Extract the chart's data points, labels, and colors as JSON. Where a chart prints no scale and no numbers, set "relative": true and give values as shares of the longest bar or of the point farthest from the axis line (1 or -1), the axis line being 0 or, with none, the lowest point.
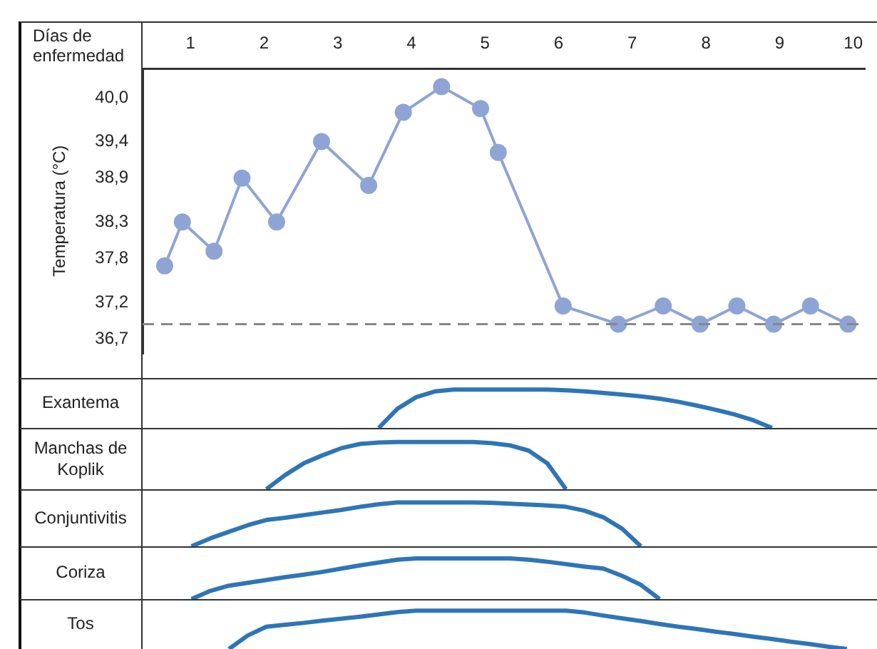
{
  "chart_data": [
    {
      "type": "line",
      "xlabel": "Días de enfermedad",
      "ylabel": "Temperatura (°C)",
      "marker": "circle",
      "x": [
        0.65,
        0.89,
        1.32,
        1.7,
        2.17,
        2.78,
        3.42,
        3.89,
        4.41,
        4.94,
        5.18,
        6.06,
        6.81,
        7.42,
        7.92,
        8.42,
        8.92,
        9.42,
        9.93
      ],
      "series": [
        {
          "color": "#8ea4d4",
          "values": [
            37.7,
            38.3,
            37.9,
            38.9,
            38.3,
            39.4,
            38.8,
            39.8,
            40.15,
            39.85,
            39.25,
            37.15,
            36.9,
            37.15,
            36.9,
            37.15,
            36.9,
            37.15,
            36.9
          ]
        }
      ],
      "xlim": [
        0.35,
        10.16
      ],
      "xticks": [
        1,
        2,
        3,
        4,
        5,
        6,
        7,
        8,
        9,
        10
      ],
      "ylim": [
        36.5,
        40.4
      ],
      "yticks": [
        {
          "value": 36.7,
          "label": "36,7"
        },
        {
          "value": 37.2,
          "label": "37,2"
        },
        {
          "value": 37.8,
          "label": "37,8"
        },
        {
          "value": 38.3,
          "label": "38,3"
        },
        {
          "value": 38.9,
          "label": "38,9"
        },
        {
          "value": 39.4,
          "label": "39,4"
        },
        {
          "value": 40.0,
          "label": "40,0"
        }
      ],
      "ref_lines": [
        {
          "axis": "y",
          "value": 36.9,
          "color": "#888888",
          "line_style": "dashed"
        }
      ]
    },
    {
      "type": "line",
      "ylabel": "Exantema",
      "relative": true,
      "tick_labels": false,
      "categories": [
        null,
        null,
        null,
        null,
        null,
        null,
        null,
        null,
        null,
        null,
        null,
        null,
        null,
        null,
        null,
        null,
        null,
        null,
        null,
        null,
        null,
        null,
        null,
        null,
        null,
        null,
        null,
        null,
        null,
        null,
        null,
        null,
        null,
        null,
        null,
        null,
        null,
        null,
        null
      ],
      "series": [
        {
          "color": "#2e75b6",
          "values": [
            null,
            null,
            null,
            null,
            null,
            null,
            null,
            null,
            null,
            null,
            null,
            null,
            0,
            0.5,
            0.8,
            0.95,
            1,
            1,
            1,
            1,
            1,
            1,
            0.98,
            0.95,
            0.91,
            0.87,
            0.82,
            0.76,
            0.68,
            0.58,
            0.47,
            0.35,
            0.2,
            0,
            null,
            null,
            null,
            null,
            null
          ]
        }
      ]
    },
    {
      "type": "line",
      "ylabel": "Manchas de Koplik",
      "relative": true,
      "tick_labels": false,
      "categories": [
        null,
        null,
        null,
        null,
        null,
        null,
        null,
        null,
        null,
        null,
        null,
        null,
        null,
        null,
        null,
        null,
        null,
        null,
        null,
        null,
        null,
        null,
        null,
        null,
        null,
        null,
        null,
        null,
        null,
        null,
        null,
        null,
        null,
        null,
        null,
        null,
        null,
        null,
        null
      ],
      "series": [
        {
          "color": "#2e75b6",
          "values": [
            null,
            null,
            null,
            null,
            null,
            null,
            0,
            0.3,
            0.55,
            0.72,
            0.87,
            0.96,
            0.99,
            1,
            1,
            1,
            1,
            1,
            0.98,
            0.93,
            0.82,
            0.55,
            0,
            null,
            null,
            null,
            null,
            null,
            null,
            null,
            null,
            null,
            null,
            null,
            null,
            null,
            null,
            null,
            null
          ]
        }
      ]
    },
    {
      "type": "line",
      "ylabel": "Conjuntivitis",
      "relative": true,
      "tick_labels": false,
      "categories": [
        null,
        null,
        null,
        null,
        null,
        null,
        null,
        null,
        null,
        null,
        null,
        null,
        null,
        null,
        null,
        null,
        null,
        null,
        null,
        null,
        null,
        null,
        null,
        null,
        null,
        null,
        null,
        null,
        null,
        null,
        null,
        null,
        null,
        null,
        null,
        null,
        null,
        null,
        null
      ],
      "series": [
        {
          "color": "#2e75b6",
          "values": [
            null,
            null,
            0,
            0.18,
            0.33,
            0.48,
            0.6,
            0.65,
            0.71,
            0.77,
            0.83,
            0.9,
            0.96,
            1,
            1,
            1,
            1,
            1,
            0.99,
            0.97,
            0.95,
            0.93,
            0.9,
            0.81,
            0.66,
            0.4,
            0,
            null,
            null,
            null,
            null,
            null,
            null,
            null,
            null,
            null,
            null,
            null,
            null
          ]
        }
      ]
    },
    {
      "type": "line",
      "ylabel": "Coriza",
      "relative": true,
      "tick_labels": false,
      "categories": [
        null,
        null,
        null,
        null,
        null,
        null,
        null,
        null,
        null,
        null,
        null,
        null,
        null,
        null,
        null,
        null,
        null,
        null,
        null,
        null,
        null,
        null,
        null,
        null,
        null,
        null,
        null,
        null,
        null,
        null,
        null,
        null,
        null,
        null,
        null,
        null,
        null,
        null,
        null
      ],
      "series": [
        {
          "color": "#2e75b6",
          "values": [
            null,
            null,
            0,
            0.2,
            0.33,
            0.4,
            0.47,
            0.54,
            0.6,
            0.67,
            0.75,
            0.83,
            0.9,
            0.97,
            1,
            1,
            1,
            1,
            1,
            1,
            0.97,
            0.92,
            0.86,
            0.8,
            0.75,
            0.57,
            0.35,
            0,
            null,
            null,
            null,
            null,
            null,
            null,
            null,
            null,
            null,
            null,
            null
          ]
        }
      ]
    },
    {
      "type": "line",
      "ylabel": "Tos",
      "relative": true,
      "tick_labels": false,
      "categories": [
        null,
        null,
        null,
        null,
        null,
        null,
        null,
        null,
        null,
        null,
        null,
        null,
        null,
        null,
        null,
        null,
        null,
        null,
        null,
        null,
        null,
        null,
        null,
        null,
        null,
        null,
        null,
        null,
        null,
        null,
        null,
        null,
        null,
        null,
        null,
        null,
        null,
        null,
        null
      ],
      "series": [
        {
          "color": "#2e75b6",
          "values": [
            null,
            null,
            null,
            null,
            0,
            0.35,
            0.58,
            0.63,
            0.68,
            0.74,
            0.79,
            0.84,
            0.9,
            0.96,
            1,
            1,
            1,
            1,
            1,
            1,
            1,
            1,
            1,
            0.95,
            0.87,
            0.8,
            0.73,
            0.65,
            0.58,
            0.52,
            0.45,
            0.39,
            0.32,
            0.26,
            0.19,
            0.13,
            0.06,
            0,
            null
          ]
        }
      ]
    }
  ]
}
